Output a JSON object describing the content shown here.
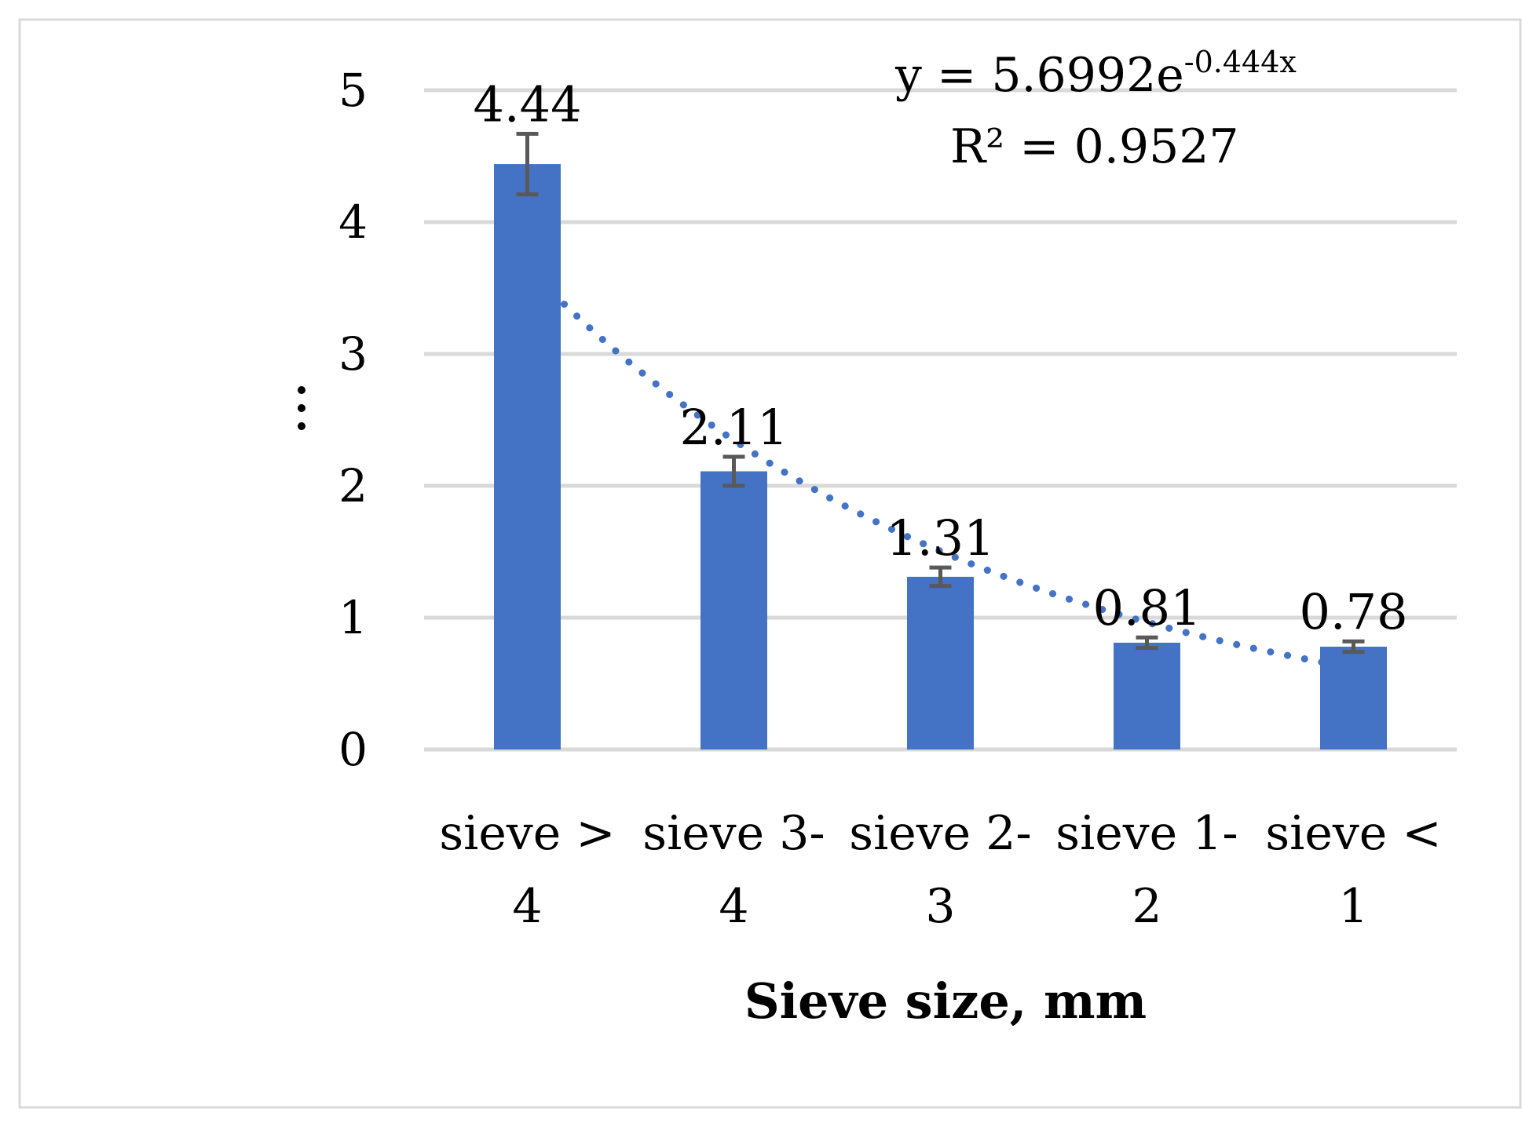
{
  "chart_data": {
    "type": "bar",
    "categories": [
      [
        "sieve >",
        "4"
      ],
      [
        "sieve 3-",
        "4"
      ],
      [
        "sieve 2-",
        "3"
      ],
      [
        "sieve 1-",
        "2"
      ],
      [
        "sieve <",
        "1"
      ]
    ],
    "values": [
      4.44,
      2.11,
      1.31,
      0.81,
      0.78
    ],
    "value_labels": [
      "4.44",
      "2.11",
      "1.31",
      "0.81",
      "0.78"
    ],
    "error_bars": [
      0.23,
      0.11,
      0.07,
      0.04,
      0.04
    ],
    "xlabel": "Sieve size, mm",
    "ylabel": "⋮",
    "ylim": [
      0,
      5
    ],
    "yticks": [
      "0",
      "1",
      "2",
      "3",
      "4",
      "5"
    ],
    "grid": true,
    "bar_color": "#4472c4",
    "trendline": {
      "type": "exponential",
      "a": 5.6992,
      "b": -0.444,
      "equation_prefix": "y = 5.6992e",
      "equation_exponent": "-0.444x",
      "r2_text": "R² = 0.9527",
      "color": "#4472c4"
    }
  }
}
